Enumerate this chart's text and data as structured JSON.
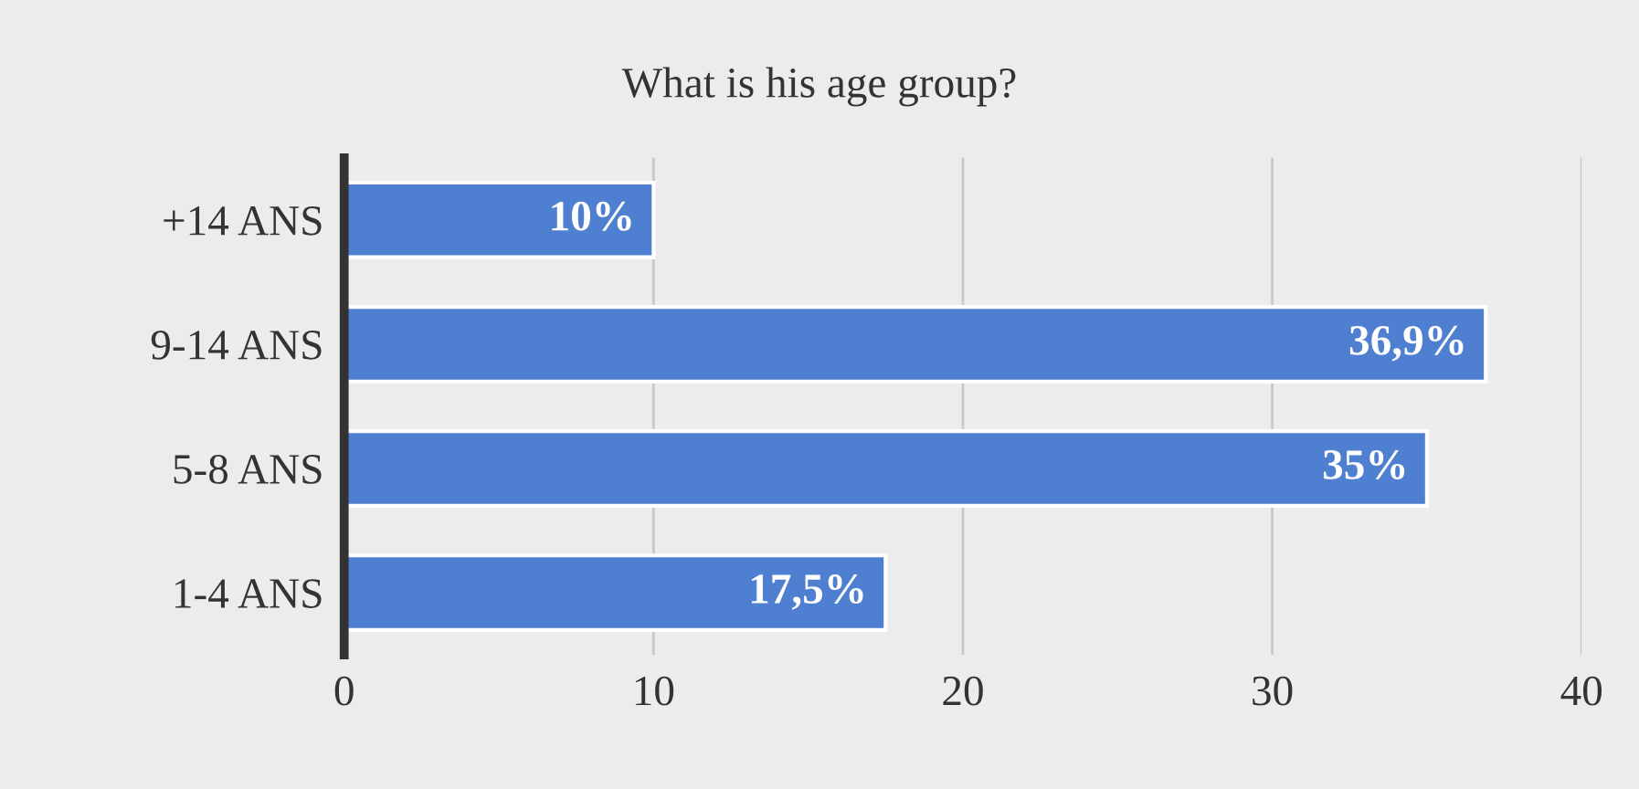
{
  "chart_data": {
    "type": "bar",
    "orientation": "horizontal",
    "title": "What is his age group?",
    "categories": [
      "+14 ANS",
      "9-14 ANS",
      "5-8 ANS",
      "1-4 ANS"
    ],
    "values": [
      10,
      36.9,
      35,
      17.5
    ],
    "value_labels": [
      "10%",
      "36,9%",
      "35%",
      "17,5%"
    ],
    "color": "#4f7fd0",
    "xlim": [
      0,
      40
    ],
    "xticks": [
      0,
      10,
      20,
      30,
      40
    ],
    "grid": "x",
    "legend": false
  }
}
